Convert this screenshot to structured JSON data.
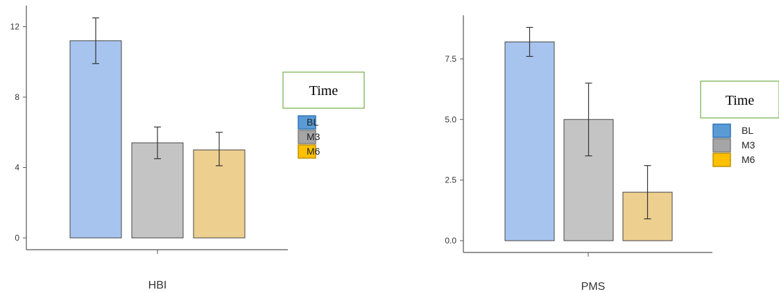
{
  "chart_data": [
    {
      "type": "bar",
      "categories": [
        "BL",
        "M3",
        "M6"
      ],
      "values": [
        11.2,
        5.4,
        5.0
      ],
      "error_low": [
        9.9,
        4.5,
        4.1
      ],
      "error_high": [
        12.5,
        6.3,
        6.0
      ],
      "xlabel": "HBI",
      "ylabel": "",
      "ylim": [
        0,
        13.2
      ],
      "yticks": [
        0,
        4,
        8,
        12
      ],
      "yticklabels": [
        "0",
        "4",
        "8",
        "12"
      ],
      "legend": {
        "title": "Time",
        "entries": [
          "BL",
          "M3",
          "M6"
        ],
        "placement": "right"
      },
      "grid": false
    },
    {
      "type": "bar",
      "categories": [
        "BL",
        "M3",
        "M6"
      ],
      "values": [
        8.2,
        5.0,
        2.0
      ],
      "error_low": [
        7.6,
        3.5,
        0.9
      ],
      "error_high": [
        8.8,
        6.5,
        3.1
      ],
      "xlabel": "PMS",
      "ylabel": "",
      "ylim": [
        0,
        9.3
      ],
      "yticks": [
        0.0,
        2.5,
        5.0,
        7.5
      ],
      "yticklabels": [
        "0.0",
        "2.5",
        "5.0",
        "7.5"
      ],
      "legend": {
        "title": "Time",
        "entries": [
          "BL",
          "M3",
          "M6"
        ],
        "placement": "right"
      },
      "grid": false
    }
  ],
  "colors": {
    "bar_fill": [
      "#a7c4ee",
      "#c4c4c4",
      "#edcf8f"
    ],
    "legend_fill": [
      "#5b9bd5",
      "#a5a5a5",
      "#ffc000"
    ],
    "legend_stroke": [
      "#2e74b5",
      "#7f7f7f",
      "#c09000"
    ],
    "legend_title_border": "#70ad47",
    "axis": "#555555",
    "bar_stroke": "#444444"
  }
}
